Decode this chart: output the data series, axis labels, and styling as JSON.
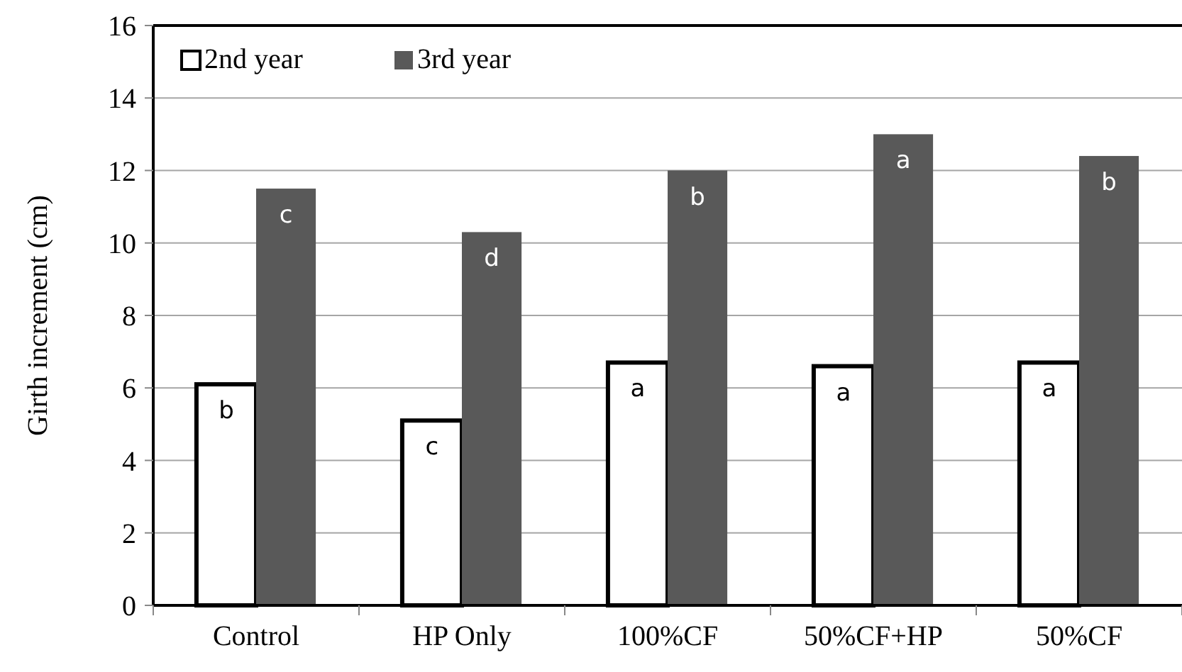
{
  "chart_data": {
    "type": "bar",
    "ylabel": "Girth increment (cm)",
    "categories": [
      "Control",
      "HP Only",
      "100%CF",
      "50%CF+HP",
      "50%CF"
    ],
    "series": [
      {
        "name": "2nd year",
        "color": "#ffffff",
        "values": [
          6.1,
          5.1,
          6.7,
          6.6,
          6.7
        ],
        "value_labels": [
          "b",
          "c",
          "a",
          "a",
          "a"
        ]
      },
      {
        "name": "3rd year",
        "color": "#595959",
        "values": [
          11.5,
          10.3,
          12.0,
          13.0,
          12.4
        ],
        "value_labels": [
          "c",
          "d",
          "b",
          "a",
          "b"
        ]
      }
    ],
    "ylim": [
      0,
      16
    ],
    "yticks": [
      0,
      2,
      4,
      6,
      8,
      10,
      12,
      14,
      16
    ],
    "grid": "y",
    "legend": "top left"
  }
}
